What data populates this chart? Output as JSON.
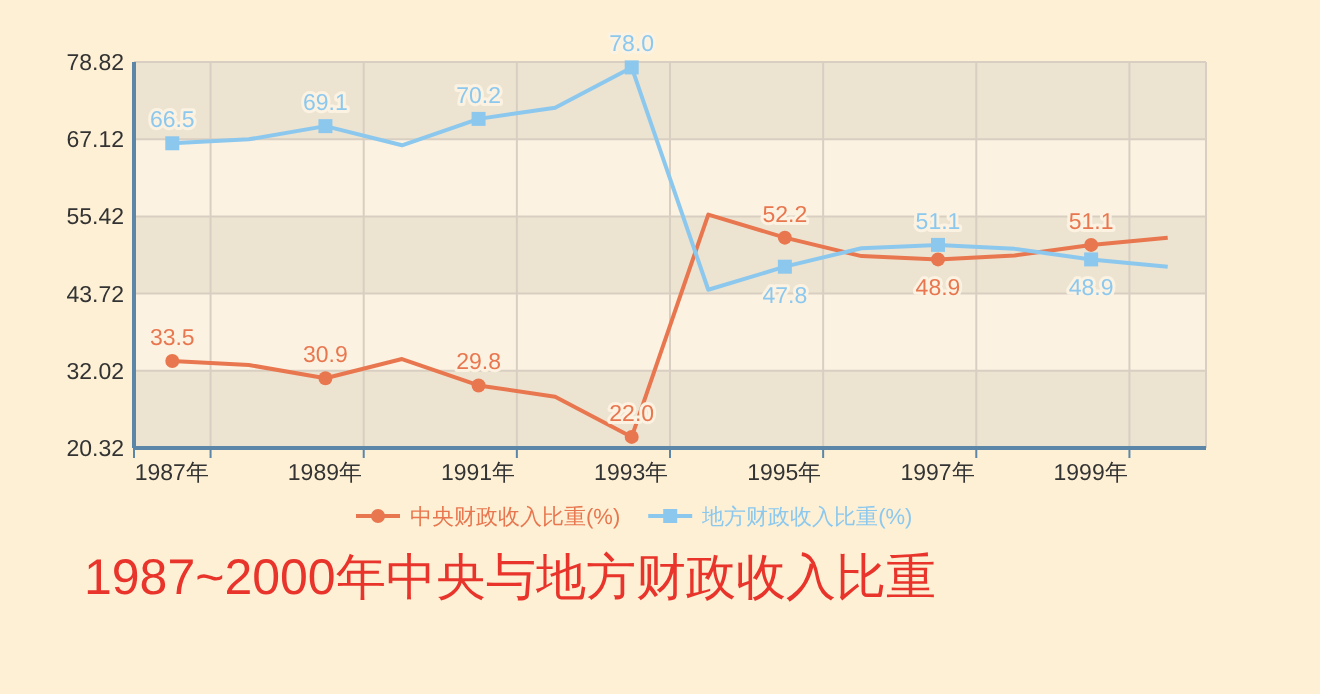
{
  "chart_data": {
    "type": "line",
    "title": "1987~2000年中央与地方财政收入比重",
    "categories": [
      "1987年",
      null,
      "1989年",
      null,
      "1991年",
      null,
      "1993年",
      null,
      "1995年",
      null,
      "1997年",
      null,
      "1999年",
      null
    ],
    "series": [
      {
        "name": "中央财政收入比重(%)",
        "color": "#e8774f",
        "marker": "circle",
        "values": [
          33.5,
          32.9,
          30.9,
          33.8,
          29.8,
          28.1,
          22.0,
          55.7,
          52.2,
          49.4,
          48.9,
          49.5,
          51.1,
          52.2
        ],
        "value_labels": [
          "33.5",
          null,
          "30.9",
          null,
          "29.8",
          null,
          "22.0",
          null,
          "52.2",
          null,
          "48.9",
          null,
          "51.1",
          null
        ]
      },
      {
        "name": "地方财政收入比重(%)",
        "color": "#8cc8ee",
        "marker": "square",
        "values": [
          66.5,
          67.1,
          69.1,
          66.2,
          70.2,
          71.9,
          78.0,
          44.3,
          47.8,
          50.6,
          51.1,
          50.5,
          48.9,
          47.8
        ],
        "value_labels": [
          "66.5",
          null,
          "69.1",
          null,
          "70.2",
          null,
          "78.0",
          null,
          "47.8",
          null,
          "51.1",
          null,
          "48.9",
          null
        ]
      }
    ],
    "ylim": [
      20.32,
      78.82
    ],
    "yticks": [
      20.32,
      32.02,
      43.72,
      55.42,
      67.12,
      78.82
    ],
    "grid": true,
    "legend": "bottom"
  }
}
